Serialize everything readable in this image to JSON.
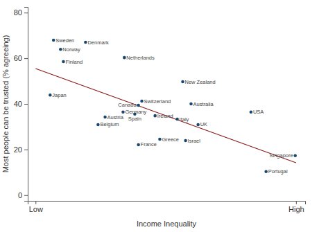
{
  "chart_data": {
    "type": "scatter",
    "x_label": "Income Inequality",
    "y_label": "Most people can be trusted (% agreeing)",
    "labels": [
      "Sweden",
      "Denmark",
      "Norway",
      "Finland",
      "Netherlands",
      "Japan",
      "New Zealand",
      "Switzerland",
      "Canada",
      "Australia",
      "USA",
      "Germany",
      "Spain",
      "Ireland",
      "Austria",
      "Belgium",
      "Italy",
      "UK",
      "France",
      "Greece",
      "Israel",
      "Singapore",
      "Portugal"
    ],
    "x": [
      6.9,
      19.2,
      9.6,
      10.7,
      34.1,
      5.6,
      56.5,
      40.8,
      39.5,
      59.7,
      82.7,
      33.6,
      38.1,
      45.9,
      26.7,
      24.0,
      54.4,
      62.4,
      39.5,
      47.7,
      57.6,
      99.7,
      88.5
    ],
    "values": [
      67.9,
      67.0,
      63.9,
      58.5,
      60.3,
      43.9,
      49.7,
      41.2,
      39.4,
      40.0,
      36.4,
      36.4,
      35.5,
      34.8,
      34.2,
      30.9,
      33.3,
      30.9,
      22.1,
      24.5,
      23.9,
      17.3,
      10.3
    ],
    "color": "#1a476f",
    "marker": "circle",
    "fit": {
      "type": "line",
      "x": [
        0,
        100
      ],
      "values": [
        55.5,
        14.2
      ],
      "color": "#8b1a1a"
    },
    "xlim": [
      -3,
      103.5
    ],
    "xticks": [
      {
        "value": 0,
        "label": "Low"
      },
      {
        "value": 100,
        "label": "High"
      }
    ],
    "ylim": [
      -2.5,
      82.5
    ],
    "yticks": [
      0,
      20,
      40,
      60,
      80
    ],
    "grid": false
  }
}
